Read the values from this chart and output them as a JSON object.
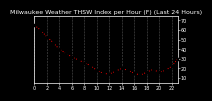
{
  "title": "Milwaukee Weather THSW Index per Hour (F) (Last 24 Hours)",
  "hours": [
    0,
    1,
    2,
    3,
    4,
    5,
    6,
    7,
    8,
    9,
    10,
    11,
    12,
    13,
    14,
    15,
    16,
    17,
    18,
    19,
    20,
    21,
    22,
    23
  ],
  "values": [
    65,
    60,
    53,
    47,
    40,
    36,
    32,
    29,
    26,
    23,
    18,
    15,
    14,
    17,
    20,
    18,
    15,
    13,
    16,
    19,
    16,
    18,
    22,
    30
  ],
  "ylim": [
    5,
    75
  ],
  "yticks": [
    10,
    20,
    30,
    40,
    50,
    60,
    70
  ],
  "ytick_labels": [
    "10",
    "20",
    "30",
    "40",
    "50",
    "60",
    "70"
  ],
  "xlim": [
    0,
    23
  ],
  "xticks": [
    0,
    2,
    4,
    6,
    8,
    10,
    12,
    14,
    16,
    18,
    20,
    22
  ],
  "xtick_labels": [
    "0",
    "2",
    "4",
    "6",
    "8",
    "10",
    "12",
    "14",
    "16",
    "18",
    "20",
    "22"
  ],
  "line_color": "#ff0000",
  "marker_color": "#000000",
  "bg_color": "#000000",
  "plot_bg_color": "#000000",
  "grid_color": "#555555",
  "text_color": "#ffffff",
  "title_fontsize": 4.5,
  "tick_fontsize": 3.5,
  "line_width": 0.7,
  "marker_size": 2.5,
  "vgrid_positions": [
    0,
    2,
    4,
    6,
    8,
    10,
    12,
    14,
    16,
    18,
    20,
    22
  ]
}
